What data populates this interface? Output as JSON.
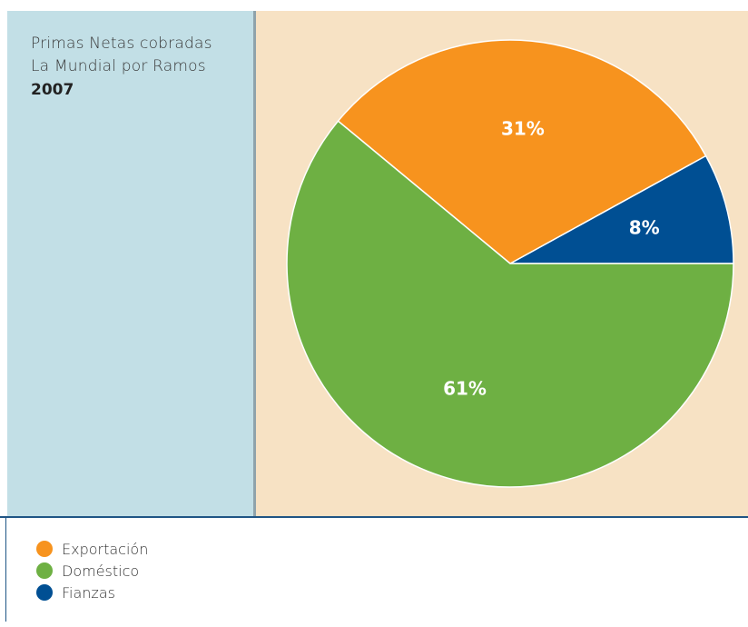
{
  "title": {
    "line1": "Primas Netas cobradas",
    "line2": "La Mundial por Ramos",
    "year": "2007"
  },
  "colors": {
    "side_panel": "#c2dfe6",
    "chart_panel": "#f7e2c4",
    "legend_rule": "#1f5585"
  },
  "chart_data": {
    "type": "pie",
    "slices": [
      {
        "label": "Exportación",
        "value": 31,
        "display": "31%",
        "color": "#f7931e"
      },
      {
        "label": "Fianzas",
        "value": 8,
        "display": "8%",
        "color": "#004f93"
      },
      {
        "label": "Doméstico",
        "value": 61,
        "display": "61%",
        "color": "#6eb043"
      }
    ],
    "legend_placement": "bottom-left",
    "legend": [
      {
        "label": "Exportación",
        "color": "#f7931e"
      },
      {
        "label": "Doméstico",
        "color": "#6eb043"
      },
      {
        "label": "Fianzas",
        "color": "#004f93"
      }
    ]
  }
}
